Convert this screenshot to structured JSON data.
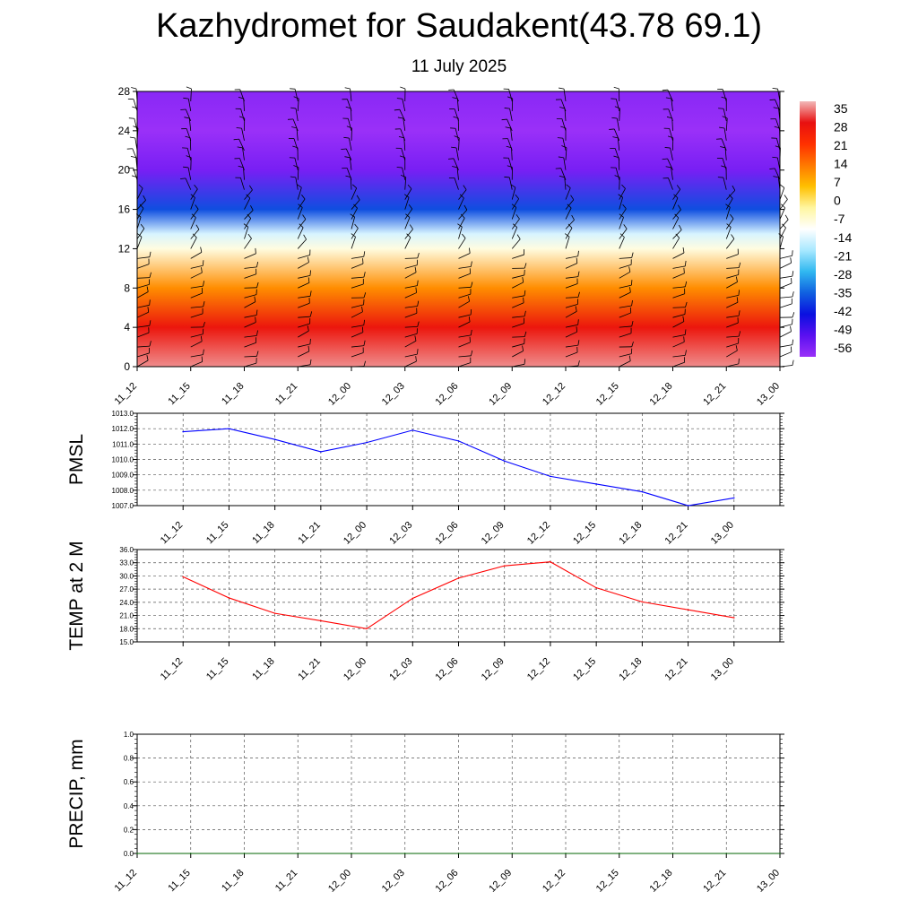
{
  "title": "Kazhydromet for Saudakent(43.78 69.1)",
  "subtitle": "11 July 2025",
  "chart_data": [
    {
      "type": "heatmap",
      "name": "cross-section",
      "x_categories": [
        "11_12",
        "11_15",
        "11_18",
        "11_21",
        "12_00",
        "12_03",
        "12_06",
        "12_09",
        "12_12",
        "12_15",
        "12_18",
        "12_21",
        "13_00"
      ],
      "ylim": [
        0,
        28
      ],
      "y_ticks": [
        0,
        4,
        8,
        12,
        16,
        20,
        24,
        28
      ],
      "colorbar_labels": [
        "35",
        "28",
        "21",
        "14",
        "7",
        "0",
        "-7",
        "-14",
        "-21",
        "-28",
        "-35",
        "-42",
        "-49",
        "-56"
      ],
      "colormap": [
        "#f2b8b8",
        "#e81010",
        "#ff3000",
        "#ff7800",
        "#ffc000",
        "#fff6a0",
        "#ffffff",
        "#a8e8ff",
        "#30b8f0",
        "#1060e0",
        "#0a10e0",
        "#5a10f0",
        "#9a30f8"
      ],
      "temperature_bands": [
        {
          "height": 0,
          "value": 33
        },
        {
          "height": 4,
          "value": 26
        },
        {
          "height": 8,
          "value": 10
        },
        {
          "height": 12,
          "value": -8
        },
        {
          "height": 13.5,
          "value": -14
        },
        {
          "height": 16,
          "value": -35
        },
        {
          "height": 20,
          "value": -52
        },
        {
          "height": 24,
          "value": -56
        },
        {
          "height": 28,
          "value": -54
        }
      ]
    },
    {
      "type": "line",
      "name": "PMSL",
      "ylabel": "PMSL",
      "color": "#0000ff",
      "ylim": [
        1007.0,
        1013.0
      ],
      "y_tick_labels": [
        "1007.0",
        "1008.0",
        "1009.0",
        "1010.0",
        "1011.0",
        "1012.0",
        "1013.0"
      ],
      "x": [
        "11_12",
        "11_15",
        "11_18",
        "11_21",
        "12_00",
        "12_03",
        "12_06",
        "12_09",
        "12_12",
        "12_15",
        "12_18",
        "12_21",
        "13_00"
      ],
      "values": [
        1011.8,
        1012.0,
        1011.3,
        1010.5,
        1011.1,
        1011.9,
        1011.2,
        1009.9,
        1008.9,
        1008.4,
        1007.9,
        1007.0,
        1007.5
      ]
    },
    {
      "type": "line",
      "name": "TEMP at 2 M",
      "ylabel": "TEMP at 2 M",
      "color": "#ff0000",
      "ylim": [
        15.0,
        36.0
      ],
      "y_tick_labels": [
        "15.0",
        "18.0",
        "21.0",
        "24.0",
        "27.0",
        "30.0",
        "33.0",
        "36.0"
      ],
      "x": [
        "11_12",
        "11_15",
        "11_18",
        "11_21",
        "12_00",
        "12_03",
        "12_06",
        "12_09",
        "12_12",
        "12_15",
        "12_18",
        "12_21",
        "13_00"
      ],
      "values": [
        29.8,
        25.0,
        21.5,
        19.8,
        18.0,
        24.9,
        29.5,
        32.3,
        33.2,
        27.3,
        24.1,
        22.3,
        20.5
      ]
    },
    {
      "type": "line",
      "name": "PRECIP, mm",
      "ylabel": "PRECIP, mm",
      "color": "#006400",
      "ylim": [
        0.0,
        1.0
      ],
      "y_tick_labels": [
        "0.0",
        "0.2",
        "0.4",
        "0.6",
        "0.8",
        "1.0"
      ],
      "x": [
        "11_12",
        "11_15",
        "11_18",
        "11_21",
        "12_00",
        "12_03",
        "12_06",
        "12_09",
        "12_12",
        "12_15",
        "12_18",
        "12_21",
        "13_00"
      ],
      "values": [
        0,
        0,
        0,
        0,
        0,
        0,
        0,
        0,
        0,
        0,
        0,
        0,
        0
      ]
    }
  ]
}
